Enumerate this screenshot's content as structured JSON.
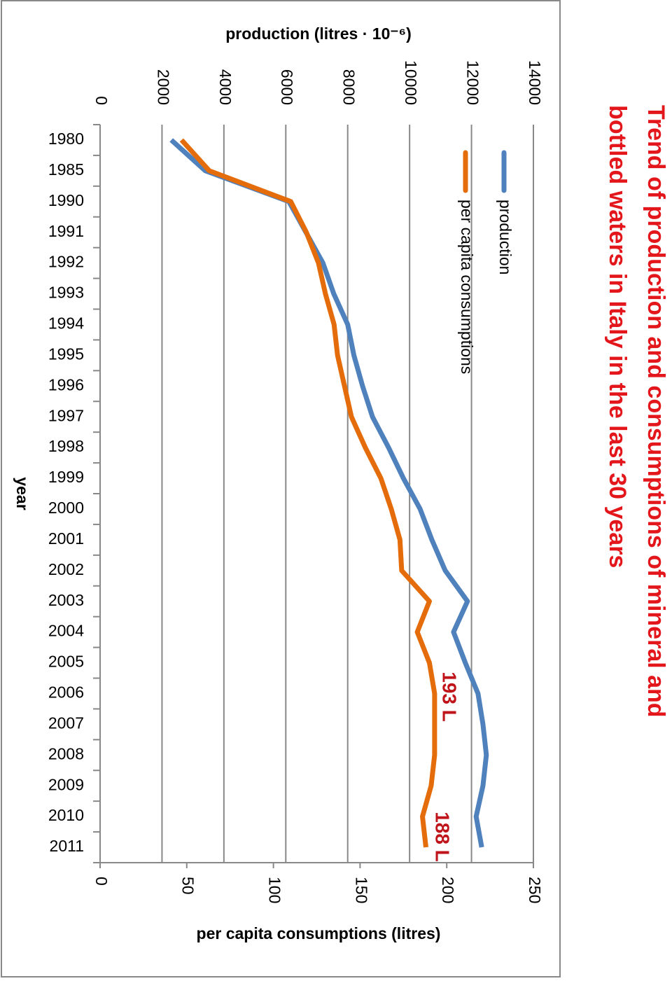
{
  "chart_data": {
    "type": "line",
    "title_lines": [
      "Trend of production and consumptions of mineral and",
      "bottled waters in Italy in the last 30 years"
    ],
    "x_label": "year",
    "y_label": "production (litres · 10⁻⁶)",
    "y2_label": "per capita consumptions (litres)",
    "categories": [
      "1980",
      "1985",
      "1990",
      "1991",
      "1992",
      "1993",
      "1994",
      "1995",
      "1996",
      "1997",
      "1998",
      "1999",
      "2000",
      "2001",
      "2002",
      "2003",
      "2004",
      "2005",
      "2006",
      "2007",
      "2008",
      "2009",
      "2010",
      "2011"
    ],
    "series": [
      {
        "name": "production",
        "color": "#4f81bd",
        "axis": "y",
        "values": [
          2300,
          3400,
          6100,
          6650,
          7200,
          7550,
          8000,
          8200,
          8480,
          8800,
          9320,
          9800,
          10340,
          10720,
          11150,
          11870,
          11420,
          11800,
          12210,
          12370,
          12480,
          12370,
          12150,
          12330
        ]
      },
      {
        "name": "per capita consumptions",
        "color": "#e46c0a",
        "axis": "y2",
        "values": [
          47,
          63,
          110,
          119,
          126,
          130,
          135,
          137,
          141,
          145,
          153,
          162,
          168,
          173,
          174,
          190,
          183,
          190,
          193,
          193,
          193,
          191,
          186,
          188
        ]
      }
    ],
    "ylim": [
      0,
      14000
    ],
    "yticks": [
      0,
      2000,
      4000,
      6000,
      8000,
      10000,
      12000,
      14000
    ],
    "y2lim": [
      0,
      250
    ],
    "y2ticks": [
      0,
      50,
      100,
      150,
      200,
      250
    ],
    "grid": true,
    "legend": "top-left",
    "annotations": [
      {
        "text": "193 L",
        "color": "#c0141b"
      },
      {
        "text": "188 L",
        "color": "#c0141b"
      }
    ]
  }
}
